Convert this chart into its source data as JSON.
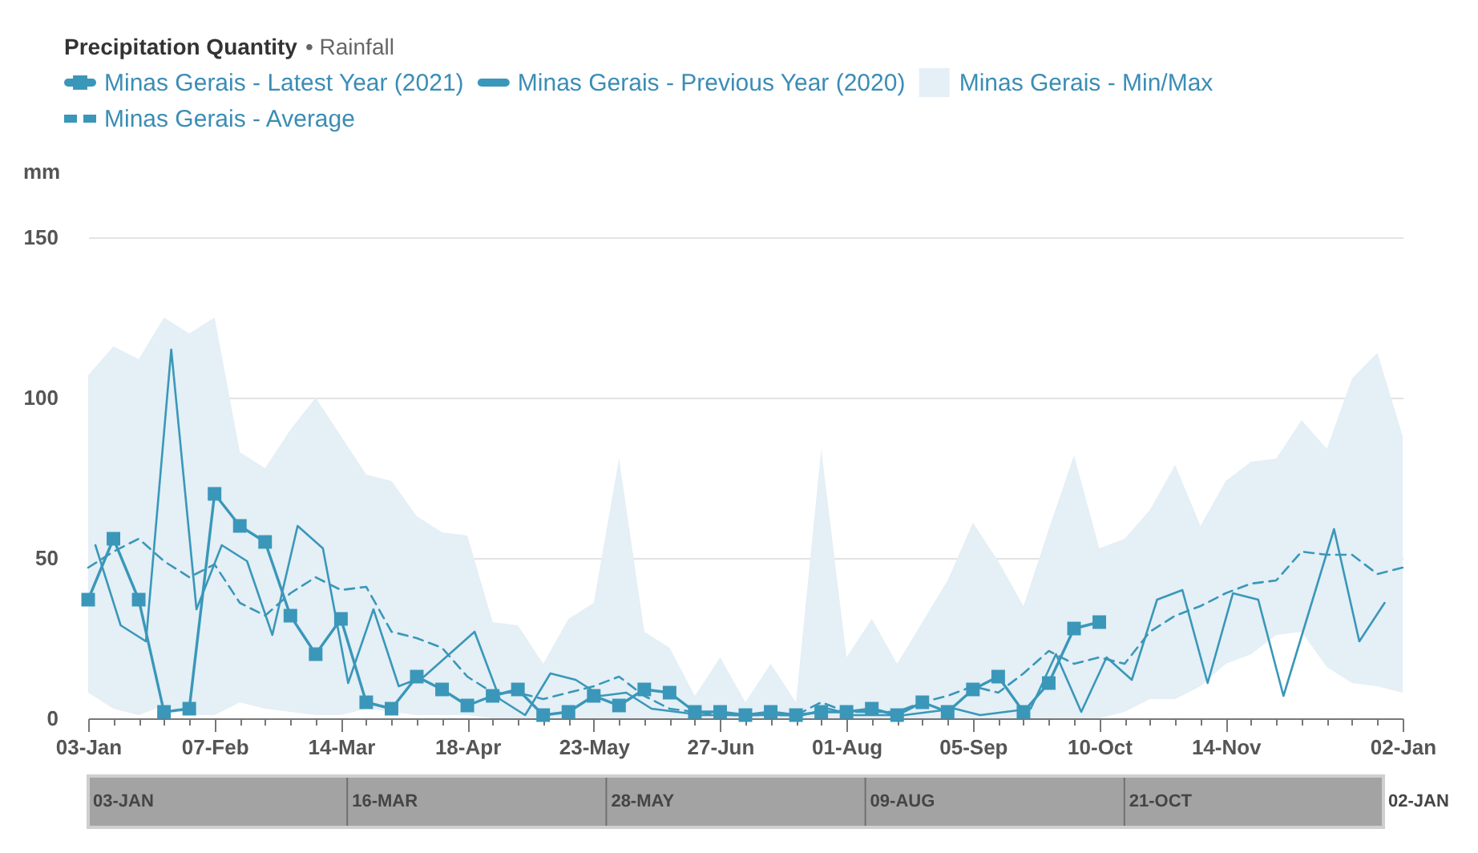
{
  "chart_data": [
    {
      "type": "line",
      "title": "Precipitation Quantity",
      "subtitle": "• Rainfall",
      "ylabel": "mm",
      "legend": "top",
      "grid": "y",
      "x": [
        "2021-01-03",
        "2021-01-10",
        "2021-01-17",
        "2021-01-24",
        "2021-01-31",
        "2021-02-07",
        "2021-02-14",
        "2021-02-21",
        "2021-02-28",
        "2021-03-07",
        "2021-03-14",
        "2021-03-21",
        "2021-03-28",
        "2021-04-04",
        "2021-04-11",
        "2021-04-18",
        "2021-04-25",
        "2021-05-02",
        "2021-05-09",
        "2021-05-16",
        "2021-05-23",
        "2021-05-30",
        "2021-06-06",
        "2021-06-13",
        "2021-06-20",
        "2021-06-27",
        "2021-07-04",
        "2021-07-11",
        "2021-07-18",
        "2021-07-25",
        "2021-08-01",
        "2021-08-08",
        "2021-08-15",
        "2021-08-22",
        "2021-08-29",
        "2021-09-05",
        "2021-09-12",
        "2021-09-19",
        "2021-09-26",
        "2021-10-03",
        "2021-10-10",
        "2021-10-17",
        "2021-10-24",
        "2021-10-31",
        "2021-11-07",
        "2021-11-14",
        "2021-11-21",
        "2021-11-28",
        "2021-12-05",
        "2021-12-12",
        "2021-12-19",
        "2021-12-26",
        "2022-01-02"
      ],
      "xlim": [
        "2021-01-03",
        "2022-01-02"
      ],
      "xticks": [
        {
          "value": "2021-01-03",
          "label": "03-Jan"
        },
        {
          "value": "2021-01-10",
          "label": null
        },
        {
          "value": "2021-01-17",
          "label": null
        },
        {
          "value": "2021-01-24",
          "label": null
        },
        {
          "value": "2021-01-31",
          "label": null
        },
        {
          "value": "2021-02-07",
          "label": "07-Feb"
        },
        {
          "value": "2021-02-14",
          "label": null
        },
        {
          "value": "2021-02-21",
          "label": null
        },
        {
          "value": "2021-02-28",
          "label": null
        },
        {
          "value": "2021-03-07",
          "label": null
        },
        {
          "value": "2021-03-14",
          "label": "14-Mar"
        },
        {
          "value": "2021-03-21",
          "label": null
        },
        {
          "value": "2021-03-28",
          "label": null
        },
        {
          "value": "2021-04-04",
          "label": null
        },
        {
          "value": "2021-04-11",
          "label": null
        },
        {
          "value": "2021-04-18",
          "label": "18-Apr"
        },
        {
          "value": "2021-04-25",
          "label": null
        },
        {
          "value": "2021-05-02",
          "label": null
        },
        {
          "value": "2021-05-09",
          "label": null
        },
        {
          "value": "2021-05-16",
          "label": null
        },
        {
          "value": "2021-05-23",
          "label": "23-May"
        },
        {
          "value": "2021-05-30",
          "label": null
        },
        {
          "value": "2021-06-06",
          "label": null
        },
        {
          "value": "2021-06-13",
          "label": null
        },
        {
          "value": "2021-06-20",
          "label": null
        },
        {
          "value": "2021-06-27",
          "label": "27-Jun"
        },
        {
          "value": "2021-07-04",
          "label": null
        },
        {
          "value": "2021-07-11",
          "label": null
        },
        {
          "value": "2021-07-18",
          "label": null
        },
        {
          "value": "2021-07-25",
          "label": null
        },
        {
          "value": "2021-08-01",
          "label": "01-Aug"
        },
        {
          "value": "2021-08-08",
          "label": null
        },
        {
          "value": "2021-08-15",
          "label": null
        },
        {
          "value": "2021-08-22",
          "label": null
        },
        {
          "value": "2021-08-29",
          "label": null
        },
        {
          "value": "2021-09-05",
          "label": "05-Sep"
        },
        {
          "value": "2021-09-12",
          "label": null
        },
        {
          "value": "2021-09-19",
          "label": null
        },
        {
          "value": "2021-09-26",
          "label": null
        },
        {
          "value": "2021-10-03",
          "label": null
        },
        {
          "value": "2021-10-10",
          "label": "10-Oct"
        },
        {
          "value": "2021-10-17",
          "label": null
        },
        {
          "value": "2021-10-24",
          "label": null
        },
        {
          "value": "2021-10-31",
          "label": null
        },
        {
          "value": "2021-11-07",
          "label": null
        },
        {
          "value": "2021-11-14",
          "label": "14-Nov"
        },
        {
          "value": "2021-11-21",
          "label": null
        },
        {
          "value": "2021-11-28",
          "label": null
        },
        {
          "value": "2021-12-05",
          "label": null
        },
        {
          "value": "2021-12-12",
          "label": null
        },
        {
          "value": "2021-12-19",
          "label": null
        },
        {
          "value": "2021-12-26",
          "label": null
        },
        {
          "value": "2022-01-02",
          "label": "02-Jan"
        }
      ],
      "ylim": [
        0,
        150
      ],
      "yticks": [
        0,
        50,
        100,
        150
      ],
      "series": [
        {
          "name": "Minas Gerais - Latest Year (2021)",
          "type": "line",
          "color": "#3a97b9",
          "marker": "square",
          "values": [
            37,
            56,
            37,
            2,
            3,
            70,
            60,
            55,
            32,
            20,
            31,
            5,
            3,
            13,
            9,
            4,
            7,
            9,
            1,
            2,
            7,
            4,
            9,
            8,
            2,
            2,
            1,
            2,
            1,
            2,
            2,
            3,
            1,
            5,
            2,
            9,
            13,
            2,
            11,
            28,
            30,
            null,
            null,
            null,
            null,
            null,
            null,
            null,
            null,
            null,
            null,
            null,
            null
          ]
        },
        {
          "name": "Minas Gerais - Previous Year (2020)",
          "type": "line",
          "color": "#3a97b9",
          "x": [
            "2021-01-05",
            "2021-01-12",
            "2021-01-19",
            "2021-01-26",
            "2021-02-02",
            "2021-02-09",
            "2021-02-16",
            "2021-02-23",
            "2021-03-02",
            "2021-03-09",
            "2021-03-16",
            "2021-03-23",
            "2021-03-30",
            "2021-04-06",
            "2021-04-13",
            "2021-04-20",
            "2021-04-27",
            "2021-05-04",
            "2021-05-11",
            "2021-05-18",
            "2021-05-25",
            "2021-06-01",
            "2021-06-08",
            "2021-06-15",
            "2021-06-22",
            "2021-06-29",
            "2021-07-06",
            "2021-07-13",
            "2021-07-20",
            "2021-07-27",
            "2021-08-03",
            "2021-08-10",
            "2021-08-17",
            "2021-08-24",
            "2021-08-31",
            "2021-09-07",
            "2021-09-14",
            "2021-09-21",
            "2021-09-28",
            "2021-10-05",
            "2021-10-12",
            "2021-10-19",
            "2021-10-26",
            "2021-11-02",
            "2021-11-09",
            "2021-11-16",
            "2021-11-23",
            "2021-11-30",
            "2021-12-07",
            "2021-12-14",
            "2021-12-21",
            "2021-12-28"
          ],
          "values": [
            54,
            29,
            24,
            115,
            34,
            54,
            49,
            26,
            60,
            53,
            11,
            34,
            10,
            13,
            20,
            27,
            6,
            1,
            14,
            12,
            7,
            8,
            3,
            2,
            1,
            1,
            1,
            1,
            1,
            3,
            1,
            1,
            1,
            2,
            3,
            1,
            2,
            3,
            20,
            2,
            19,
            12,
            37,
            40,
            11,
            39,
            37,
            7,
            33,
            59,
            24,
            36
          ]
        },
        {
          "name": "Minas Gerais - Min/Max",
          "type": "area",
          "color": "#e4eff6",
          "values": [
            null,
            null,
            null,
            null,
            null,
            null,
            null,
            null,
            null,
            null,
            null,
            null,
            null,
            null,
            null,
            null,
            null,
            null,
            null,
            null,
            null,
            null,
            null,
            null,
            null,
            null,
            null,
            null,
            null,
            null,
            null,
            null,
            null,
            null,
            null,
            null,
            null,
            null,
            null,
            null,
            null,
            null,
            null,
            null,
            null,
            null,
            null,
            null,
            null,
            null,
            null,
            null,
            null
          ],
          "upper": [
            107,
            116,
            112,
            125,
            120,
            125,
            83,
            78,
            90,
            100,
            88,
            76,
            74,
            63,
            58,
            57,
            30,
            29,
            17,
            31,
            36,
            81,
            27,
            22,
            7,
            19,
            5,
            17,
            5,
            84,
            19,
            31,
            17,
            30,
            43,
            61,
            49,
            35,
            59,
            82,
            53,
            56,
            65,
            79,
            60,
            74,
            80,
            81,
            93,
            84,
            106,
            114,
            88
          ],
          "lower": [
            8,
            3,
            1,
            4,
            1,
            1,
            5,
            3,
            2,
            1,
            1,
            3,
            2,
            1,
            1,
            1,
            0,
            0,
            0,
            0,
            0,
            0,
            0,
            0,
            0,
            0,
            0,
            0,
            0,
            0,
            0,
            0,
            0,
            0,
            0,
            0,
            0,
            0,
            0,
            0,
            0,
            2,
            6,
            6,
            10,
            17,
            20,
            26,
            27,
            16,
            11,
            10,
            8
          ]
        },
        {
          "name": "Minas Gerais - Average",
          "type": "line",
          "color": "#3a97b9",
          "line_style": "dashed",
          "values": [
            47,
            52,
            56,
            49,
            44,
            48,
            36,
            32,
            39,
            44,
            40,
            41,
            27,
            25,
            22,
            13,
            8,
            8,
            6,
            8,
            10,
            13,
            7,
            3,
            2,
            1,
            1,
            1,
            1,
            5,
            2,
            2,
            2,
            5,
            7,
            10,
            8,
            14,
            21,
            17,
            19,
            17,
            27,
            32,
            35,
            39,
            42,
            43,
            52,
            51,
            51,
            45,
            47
          ]
        }
      ]
    },
    {
      "type": "other",
      "annotations": [
        "03-JAN",
        "16-MAR",
        "28-MAY",
        "09-AUG",
        "21-OCT",
        "02-JAN"
      ]
    }
  ]
}
